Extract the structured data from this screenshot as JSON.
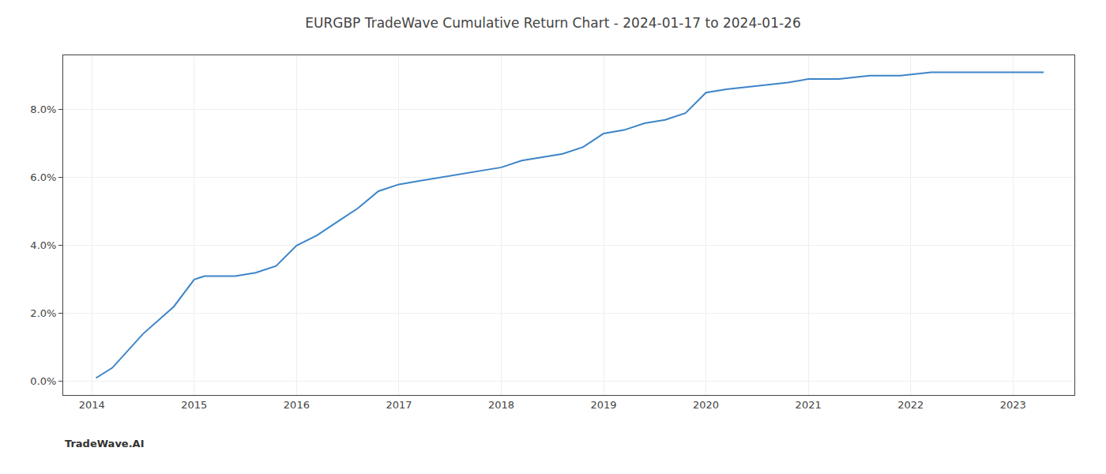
{
  "chart_data": {
    "type": "line",
    "title": "EURGBP TradeWave Cumulative Return Chart - 2024-01-17 to 2024-01-26",
    "annotations": [
      "TradeWave.AI"
    ],
    "color": "#3d85c8",
    "grid": true,
    "x": [
      2014.04,
      2014.2,
      2014.5,
      2014.8,
      2015.0,
      2015.1,
      2015.2,
      2015.4,
      2015.6,
      2015.8,
      2016.0,
      2016.2,
      2016.4,
      2016.6,
      2016.8,
      2017.0,
      2017.2,
      2017.4,
      2017.6,
      2017.8,
      2018.0,
      2018.2,
      2018.4,
      2018.6,
      2018.8,
      2019.0,
      2019.2,
      2019.4,
      2019.6,
      2019.8,
      2020.0,
      2020.2,
      2020.5,
      2020.8,
      2021.0,
      2021.3,
      2021.6,
      2021.9,
      2022.2,
      2022.5,
      2022.8,
      2023.0,
      2023.3
    ],
    "values": [
      0.001,
      0.004,
      0.014,
      0.022,
      0.03,
      0.031,
      0.031,
      0.031,
      0.032,
      0.034,
      0.04,
      0.043,
      0.047,
      0.051,
      0.056,
      0.058,
      0.059,
      0.06,
      0.061,
      0.062,
      0.063,
      0.065,
      0.066,
      0.067,
      0.069,
      0.073,
      0.074,
      0.076,
      0.077,
      0.079,
      0.085,
      0.086,
      0.087,
      0.088,
      0.089,
      0.089,
      0.09,
      0.09,
      0.091,
      0.091,
      0.091,
      0.091,
      0.091
    ],
    "xlim": [
      2013.72,
      2023.6
    ],
    "ylim": [
      -0.004,
      0.096
    ],
    "xticks": [
      2014,
      2015,
      2016,
      2017,
      2018,
      2019,
      2020,
      2021,
      2022,
      2023
    ],
    "yticks": [
      {
        "value": 0.0,
        "label": "0.0%"
      },
      {
        "value": 0.02,
        "label": "2.0%"
      },
      {
        "value": 0.04,
        "label": "4.0%"
      },
      {
        "value": 0.06,
        "label": "6.0%"
      },
      {
        "value": 0.08,
        "label": "8.0%"
      }
    ]
  }
}
